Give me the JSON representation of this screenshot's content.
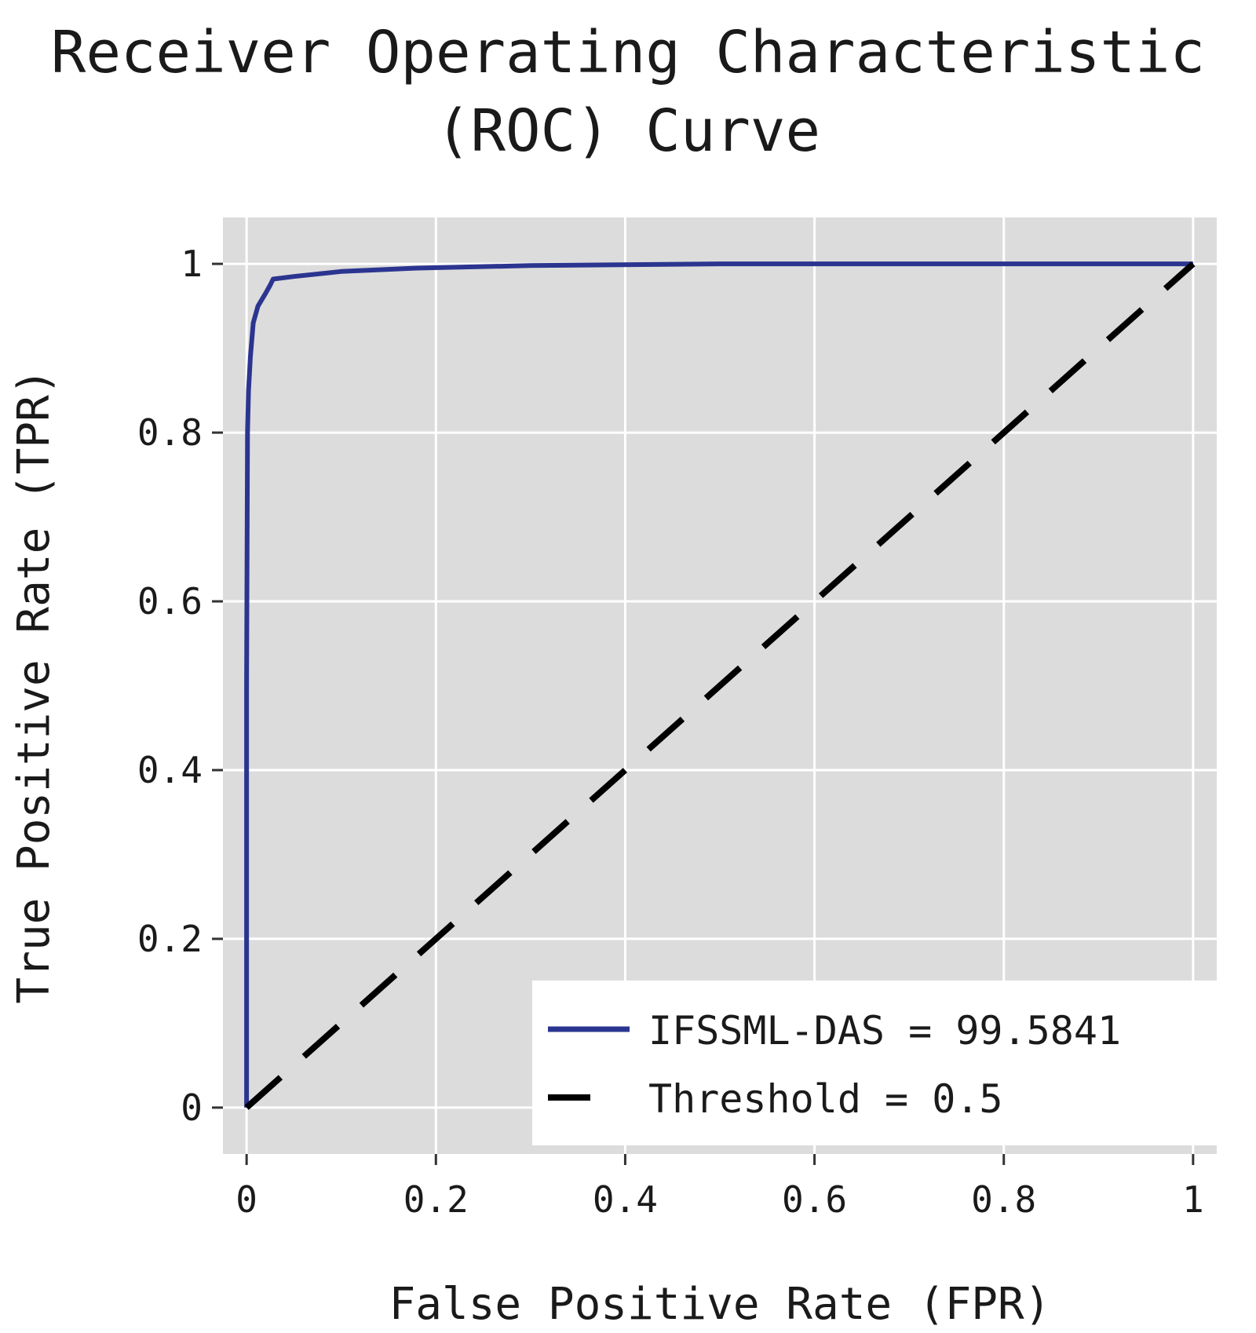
{
  "chart_data": {
    "type": "line",
    "title_line1": "Receiver Operating Characteristic",
    "title_line2": "(ROC) Curve",
    "xlabel": "False Positive Rate (FPR)",
    "ylabel": "True Positive Rate (TPR)",
    "xlim": [
      -0.025,
      1.025
    ],
    "ylim": [
      -0.055,
      1.055
    ],
    "x_ticks": [
      0,
      0.2,
      0.4,
      0.6,
      0.8,
      1
    ],
    "x_tick_labels": [
      "0",
      "0.2",
      "0.4",
      "0.6",
      "0.8",
      "1"
    ],
    "y_ticks": [
      0,
      0.2,
      0.4,
      0.6,
      0.8,
      1
    ],
    "y_tick_labels": [
      "0",
      "0.2",
      "0.4",
      "0.6",
      "0.8",
      "1"
    ],
    "grid": true,
    "legend_position": "bottom-right",
    "background_color": "#dcdcdc",
    "grid_color": "#ffffff",
    "series": [
      {
        "name": "IFSSML-DAS = 99.5841",
        "style": "solid",
        "color": "#2b3590",
        "x": [
          0,
          0,
          0.001,
          0.002,
          0.004,
          0.007,
          0.012,
          0.02,
          0.025,
          0.028,
          0.05,
          0.1,
          0.18,
          0.3,
          0.5,
          0.7,
          1.0
        ],
        "y": [
          0,
          0.5,
          0.8,
          0.85,
          0.89,
          0.93,
          0.95,
          0.965,
          0.975,
          0.982,
          0.985,
          0.991,
          0.995,
          0.998,
          1.0,
          1.0,
          1.0
        ]
      },
      {
        "name": "Threshold = 0.5",
        "style": "dashed",
        "color": "#000000",
        "x": [
          0,
          1
        ],
        "y": [
          0,
          1
        ]
      }
    ]
  }
}
